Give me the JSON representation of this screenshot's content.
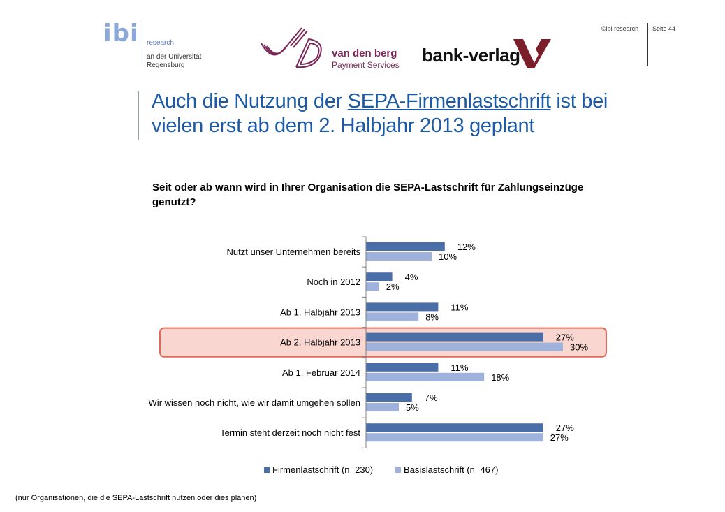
{
  "header": {
    "ibi_logo_text": "ibi",
    "ibi_research": "research",
    "ibi_uni_line1": "an der Universität",
    "ibi_uni_line2": "Regensburg",
    "vdb_name": "van den berg",
    "vdb_sub": "Payment Services",
    "bank_verlag": "bank-verlag",
    "copyright": "©ibi research",
    "page": "Seite 44"
  },
  "title": {
    "line1_pre": "Auch die Nutzung der ",
    "line1_ul": "SEPA-Firmenlastschrift",
    "line1_post": " ist bei",
    "line2": "vielen erst ab dem 2. Halbjahr 2013 geplant"
  },
  "question": "Seit oder ab wann wird in Ihrer Organisation die SEPA-Lastschrift für Zahlungseinzüge genutzt?",
  "footnote": "(nur Organisationen, die die SEPA-Lastschrift nutzen oder dies planen)",
  "colors": {
    "series1": "#4a6ea8",
    "series2": "#9fb2dc",
    "highlight_fill": "#f9d6cf",
    "highlight_stroke": "#e06a5a"
  },
  "chart_data": {
    "type": "bar",
    "orientation": "horizontal",
    "categories": [
      "Nutzt unser Unternehmen bereits",
      "Noch in 2012",
      "Ab 1. Halbjahr 2013",
      "Ab 2. Halbjahr 2013",
      "Ab 1. Februar 2014",
      "Wir wissen noch nicht, wie wir damit umgehen sollen",
      "Termin steht derzeit noch nicht fest"
    ],
    "series": [
      {
        "name": "Firmenlastschrift (n=230)",
        "values": [
          12,
          4,
          11,
          27,
          11,
          7,
          27
        ],
        "labels": [
          "12%",
          "4%",
          "11%",
          "27%",
          "11%",
          "7%",
          "27%"
        ]
      },
      {
        "name": "Basislastschrift (n=467)",
        "values": [
          10,
          2,
          8,
          30,
          18,
          5,
          27
        ],
        "labels": [
          "10%",
          "2%",
          "8%",
          "30%",
          "18%",
          "5%",
          "27%"
        ]
      }
    ],
    "unit": "%",
    "xlim": [
      0,
      40
    ],
    "highlighted_category": "Ab 2. Halbjahr 2013",
    "legend_position": "bottom",
    "grid": false
  }
}
